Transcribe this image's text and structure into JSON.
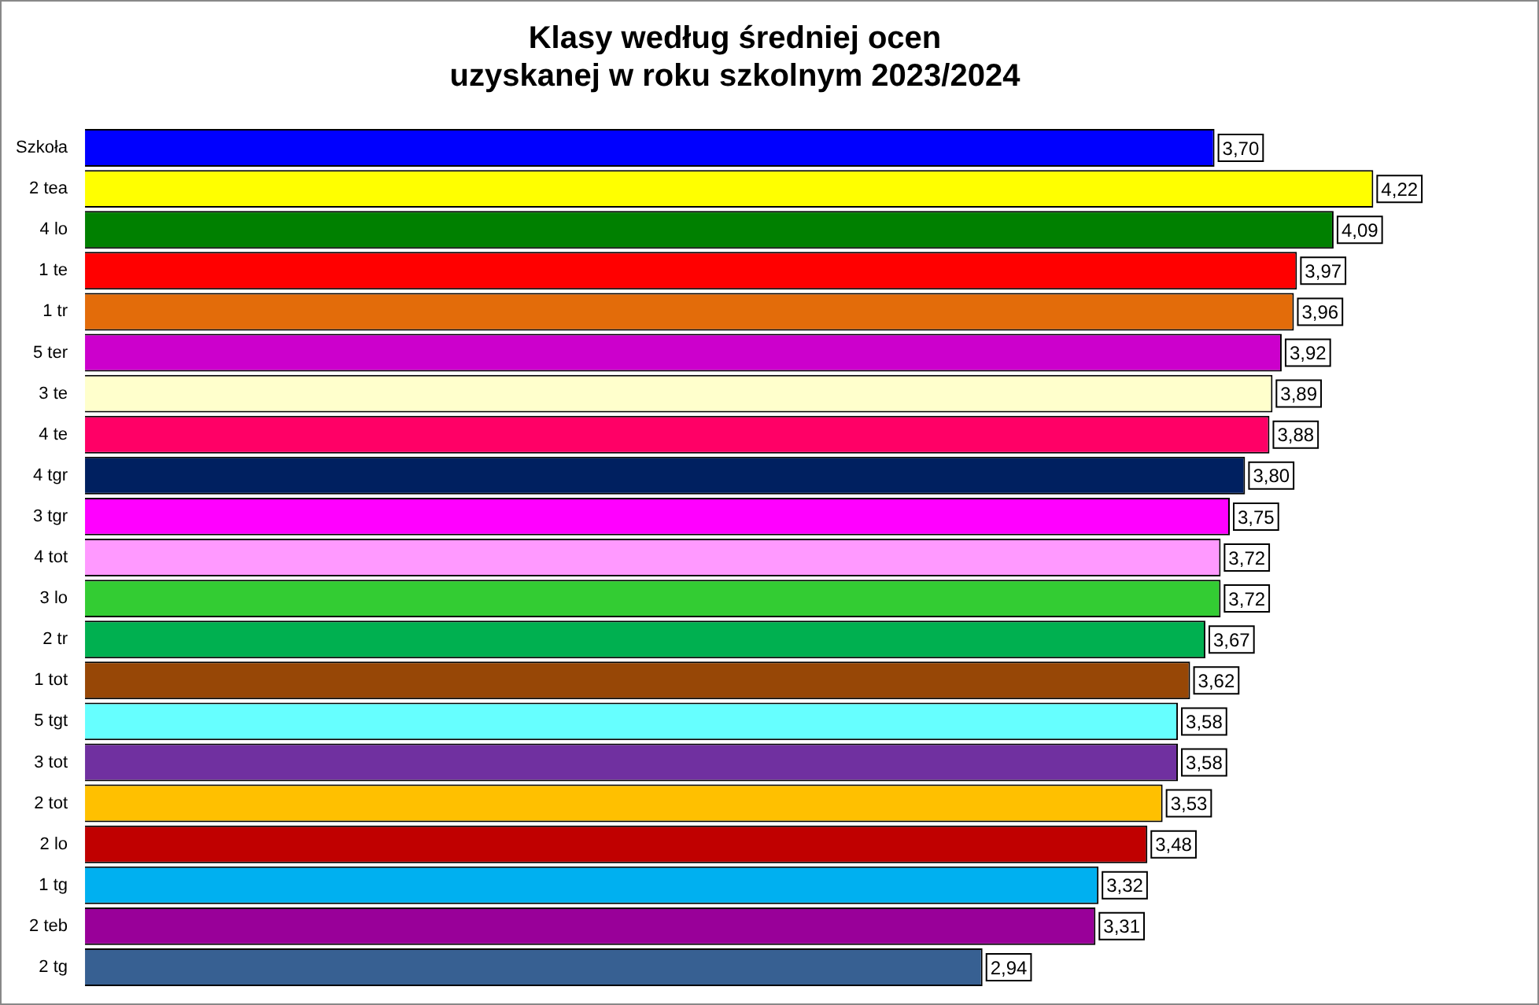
{
  "chart_data": {
    "type": "bar",
    "orientation": "horizontal",
    "title": "Klasy według średniej ocen\nuzyskanej w roku szkolnym 2023/2024",
    "data_labels": true,
    "legend": false,
    "tick_labels": "y",
    "categories": [
      "Szkoła",
      "2 tea",
      "4 lo",
      "1 te",
      "1 tr",
      "5 ter",
      "3 te",
      "4 te",
      "4 tgr",
      "3 tgr",
      "4 tot",
      "3 lo",
      "2 tr",
      "1 tot",
      "5 tgt",
      "3 tot",
      "2 tot",
      "2 lo",
      "1 tg",
      "2 teb",
      "2 tg"
    ],
    "values": [
      3.7,
      4.22,
      4.09,
      3.97,
      3.96,
      3.92,
      3.89,
      3.88,
      3.8,
      3.75,
      3.72,
      3.72,
      3.67,
      3.62,
      3.58,
      3.58,
      3.53,
      3.48,
      3.32,
      3.31,
      2.94
    ],
    "value_labels": [
      "3,70",
      "4,22",
      "4,09",
      "3,97",
      "3,96",
      "3,92",
      "3,89",
      "3,88",
      "3,80",
      "3,75",
      "3,72",
      "3,72",
      "3,67",
      "3,62",
      "3,58",
      "3,58",
      "3,53",
      "3,48",
      "3,32",
      "3,31",
      "2,94"
    ],
    "colors": [
      "#0000ff",
      "#ffff00",
      "#008000",
      "#ff0000",
      "#e36c0a",
      "#cc00cc",
      "#ffffcc",
      "#ff0066",
      "#002060",
      "#ff00ff",
      "#ff99ff",
      "#33cc33",
      "#00b050",
      "#974706",
      "#66ffff",
      "#7030a0",
      "#ffc000",
      "#c00000",
      "#00b0f0",
      "#990099",
      "#376092"
    ]
  }
}
